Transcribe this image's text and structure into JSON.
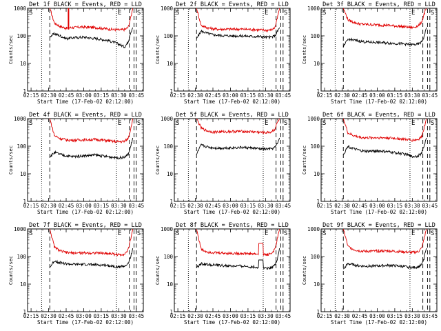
{
  "figure": {
    "x_tick_labels": [
      "02:15",
      "02:30",
      "02:45",
      "03:00",
      "03:15",
      "03:30",
      "03:45"
    ],
    "y_tick_labels": [
      "1",
      "10",
      "100",
      "1000"
    ],
    "xlabel": "Start Time (17-Feb-02 02:12:00)",
    "ylabel": "Counts/sec",
    "marker_S": "S",
    "marker_E": "E",
    "series_colors": {
      "events": "#000000",
      "lld": "#e00000"
    }
  },
  "chart_data": [
    {
      "type": "line",
      "title": "Det 1f BLACK = Events, RED = LLD",
      "xlabel": "Start Time (17-Feb-02 02:12:00)",
      "ylabel": "Counts/sec",
      "ylim": [
        1,
        1000
      ],
      "y_scale": "log",
      "x_range": [
        "02:12",
        "03:51"
      ],
      "time_markers": {
        "dotted": [
          "02:24",
          "03:28"
        ],
        "dashed": [
          "02:31",
          "03:39",
          "03:43",
          "03:45"
        ]
      },
      "spike": {
        "x": "02:47",
        "y": 170
      },
      "x": [
        "02:31",
        "02:35",
        "02:40",
        "02:45",
        "02:50",
        "03:00",
        "03:10",
        "03:20",
        "03:25",
        "03:30",
        "03:35",
        "03:38",
        "03:40",
        "03:42"
      ],
      "series": [
        {
          "name": "LLD",
          "values": [
            1000,
            290,
            220,
            190,
            200,
            210,
            200,
            180,
            170,
            165,
            170,
            200,
            420,
            1000
          ]
        },
        {
          "name": "Events",
          "values": [
            95,
            120,
            100,
            80,
            85,
            90,
            80,
            70,
            60,
            50,
            40,
            60,
            130,
            200
          ]
        }
      ]
    },
    {
      "type": "line",
      "title": "Det 2f BLACK = Events, RED = LLD",
      "xlabel": "Start Time (17-Feb-02 02:12:00)",
      "ylabel": "Counts/sec",
      "ylim": [
        1,
        1000
      ],
      "y_scale": "log",
      "x_range": [
        "02:12",
        "03:51"
      ],
      "time_markers": {
        "dotted": [
          "02:24",
          "03:28"
        ],
        "dashed": [
          "02:31",
          "03:39",
          "03:43",
          "03:45"
        ]
      },
      "x": [
        "02:31",
        "02:35",
        "02:40",
        "02:45",
        "02:50",
        "03:00",
        "03:10",
        "03:20",
        "03:25",
        "03:30",
        "03:35",
        "03:38",
        "03:40",
        "03:42"
      ],
      "series": [
        {
          "name": "LLD",
          "values": [
            1000,
            240,
            200,
            180,
            175,
            175,
            175,
            170,
            165,
            160,
            165,
            200,
            420,
            1000
          ]
        },
        {
          "name": "Events",
          "values": [
            80,
            150,
            125,
            110,
            105,
            100,
            100,
            95,
            95,
            90,
            90,
            100,
            140,
            200
          ]
        }
      ]
    },
    {
      "type": "line",
      "title": "Det 3f BLACK = Events, RED = LLD",
      "xlabel": "Start Time (17-Feb-02 02:12:00)",
      "ylabel": "Counts/sec",
      "ylim": [
        1,
        1000
      ],
      "y_scale": "log",
      "x_range": [
        "02:12",
        "03:51"
      ],
      "time_markers": {
        "dotted": [
          "02:24",
          "03:28"
        ],
        "dashed": [
          "02:31",
          "03:39",
          "03:43",
          "03:45"
        ]
      },
      "x": [
        "02:31",
        "02:35",
        "02:40",
        "02:45",
        "02:50",
        "03:00",
        "03:10",
        "03:20",
        "03:25",
        "03:30",
        "03:35",
        "03:38",
        "03:40",
        "03:42"
      ],
      "series": [
        {
          "name": "LLD",
          "values": [
            1000,
            380,
            310,
            270,
            260,
            250,
            240,
            220,
            210,
            200,
            230,
            320,
            600,
            1000
          ]
        },
        {
          "name": "Events",
          "values": [
            40,
            75,
            70,
            65,
            60,
            58,
            55,
            52,
            50,
            48,
            50,
            60,
            90,
            200
          ]
        }
      ]
    },
    {
      "type": "line",
      "title": "Det 4f BLACK = Events, RED = LLD",
      "xlabel": "Start Time (17-Feb-02 02:12:00)",
      "ylabel": "Counts/sec",
      "ylim": [
        1,
        1000
      ],
      "y_scale": "log",
      "x_range": [
        "02:12",
        "03:51"
      ],
      "time_markers": {
        "dotted": [
          "02:24",
          "03:28"
        ],
        "dashed": [
          "02:31",
          "03:39",
          "03:43",
          "03:45"
        ]
      },
      "x": [
        "02:31",
        "02:35",
        "02:40",
        "02:45",
        "02:50",
        "03:00",
        "03:10",
        "03:20",
        "03:25",
        "03:30",
        "03:35",
        "03:38",
        "03:40",
        "03:42"
      ],
      "series": [
        {
          "name": "LLD",
          "values": [
            1000,
            240,
            190,
            170,
            165,
            170,
            175,
            160,
            150,
            145,
            150,
            190,
            400,
            1000
          ]
        },
        {
          "name": "Events",
          "values": [
            40,
            60,
            50,
            45,
            42,
            45,
            48,
            42,
            40,
            38,
            40,
            50,
            90,
            200
          ]
        }
      ]
    },
    {
      "type": "line",
      "title": "Det 5f BLACK = Events, RED = LLD",
      "xlabel": "Start Time (17-Feb-02 02:12:00)",
      "ylabel": "Counts/sec",
      "ylim": [
        1,
        1000
      ],
      "y_scale": "log",
      "x_range": [
        "02:12",
        "03:51"
      ],
      "time_markers": {
        "dotted": [
          "02:24",
          "03:28"
        ],
        "dashed": [
          "02:31",
          "03:39",
          "03:43",
          "03:45"
        ]
      },
      "x": [
        "02:31",
        "02:35",
        "02:40",
        "02:45",
        "02:50",
        "03:00",
        "03:10",
        "03:20",
        "03:25",
        "03:30",
        "03:35",
        "03:38",
        "03:40",
        "03:42"
      ],
      "series": [
        {
          "name": "LLD",
          "values": [
            1000,
            450,
            360,
            330,
            330,
            340,
            345,
            330,
            320,
            310,
            330,
            420,
            700,
            1000
          ]
        },
        {
          "name": "Events",
          "values": [
            50,
            110,
            95,
            88,
            85,
            88,
            90,
            85,
            80,
            78,
            80,
            90,
            120,
            200
          ]
        }
      ]
    },
    {
      "type": "line",
      "title": "Det 6f BLACK = Events, RED = LLD",
      "xlabel": "Start Time (17-Feb-02 02:12:00)",
      "ylabel": "Counts/sec",
      "ylim": [
        1,
        1000
      ],
      "y_scale": "log",
      "x_range": [
        "02:12",
        "03:51"
      ],
      "time_markers": {
        "dotted": [
          "02:24",
          "03:28"
        ],
        "dashed": [
          "02:31",
          "03:39",
          "03:43",
          "03:45"
        ]
      },
      "x": [
        "02:31",
        "02:35",
        "02:40",
        "02:45",
        "02:50",
        "03:00",
        "03:10",
        "03:20",
        "03:25",
        "03:30",
        "03:35",
        "03:38",
        "03:40",
        "03:42"
      ],
      "series": [
        {
          "name": "LLD",
          "values": [
            1000,
            300,
            240,
            210,
            200,
            205,
            200,
            185,
            175,
            165,
            175,
            220,
            450,
            1000
          ]
        },
        {
          "name": "Events",
          "values": [
            50,
            100,
            80,
            70,
            65,
            68,
            62,
            55,
            50,
            42,
            45,
            55,
            100,
            200
          ]
        }
      ]
    },
    {
      "type": "line",
      "title": "Det 7f BLACK = Events, RED = LLD",
      "xlabel": "Start Time (17-Feb-02 02:12:00)",
      "ylabel": "Counts/sec",
      "ylim": [
        1,
        1000
      ],
      "y_scale": "log",
      "x_range": [
        "02:12",
        "03:51"
      ],
      "time_markers": {
        "dotted": [
          "02:24",
          "03:28"
        ],
        "dashed": [
          "02:31",
          "03:39",
          "03:43",
          "03:45"
        ]
      },
      "x": [
        "02:31",
        "02:35",
        "02:40",
        "02:45",
        "02:50",
        "03:00",
        "03:10",
        "03:20",
        "03:25",
        "03:30",
        "03:35",
        "03:38",
        "03:40",
        "03:42"
      ],
      "series": [
        {
          "name": "LLD",
          "values": [
            1000,
            220,
            160,
            140,
            135,
            135,
            135,
            130,
            125,
            115,
            125,
            170,
            400,
            1000
          ]
        },
        {
          "name": "Events",
          "values": [
            40,
            70,
            60,
            55,
            52,
            52,
            50,
            48,
            45,
            42,
            45,
            55,
            90,
            200
          ]
        }
      ]
    },
    {
      "type": "line",
      "title": "Det 8f BLACK = Events, RED = LLD",
      "xlabel": "Start Time (17-Feb-02 02:12:00)",
      "ylabel": "Counts/sec",
      "ylim": [
        1,
        1000
      ],
      "y_scale": "log",
      "x_range": [
        "02:12",
        "03:51"
      ],
      "time_markers": {
        "dotted": [
          "02:24",
          "03:28"
        ],
        "dashed": [
          "02:31",
          "03:39",
          "03:43",
          "03:45"
        ]
      },
      "x": [
        "02:31",
        "02:35",
        "02:40",
        "02:45",
        "02:50",
        "03:00",
        "03:10",
        "03:20",
        "03:25",
        "03:30",
        "03:35",
        "03:38",
        "03:40",
        "03:42"
      ],
      "series": [
        {
          "name": "LLD",
          "values": [
            1000,
            180,
            150,
            140,
            135,
            130,
            130,
            125,
            120,
            115,
            130,
            180,
            420,
            1000
          ]
        },
        {
          "name": "Events",
          "values": [
            40,
            55,
            52,
            50,
            48,
            45,
            45,
            42,
            40,
            38,
            40,
            50,
            80,
            200
          ]
        }
      ],
      "anomaly": {
        "x_start": "03:24",
        "x_end": "03:28",
        "lld_peak": 300,
        "events_peak": 75
      }
    },
    {
      "type": "line",
      "title": "Det 9f BLACK = Events, RED = LLD",
      "xlabel": "Start Time (17-Feb-02 02:12:00)",
      "ylabel": "Counts/sec",
      "ylim": [
        1,
        1000
      ],
      "y_scale": "log",
      "x_range": [
        "02:12",
        "03:51"
      ],
      "time_markers": {
        "dotted": [
          "02:24",
          "03:28"
        ],
        "dashed": [
          "02:31",
          "03:39",
          "03:43",
          "03:45"
        ]
      },
      "x": [
        "02:31",
        "02:35",
        "02:40",
        "02:45",
        "02:50",
        "03:00",
        "03:10",
        "03:20",
        "03:25",
        "03:30",
        "03:35",
        "03:38",
        "03:40",
        "03:42"
      ],
      "series": [
        {
          "name": "LLD",
          "values": [
            1000,
            230,
            180,
            160,
            155,
            158,
            160,
            150,
            145,
            140,
            150,
            200,
            420,
            1000
          ]
        },
        {
          "name": "Events",
          "values": [
            35,
            55,
            50,
            46,
            45,
            46,
            48,
            45,
            42,
            40,
            42,
            50,
            85,
            200
          ]
        }
      ]
    }
  ]
}
